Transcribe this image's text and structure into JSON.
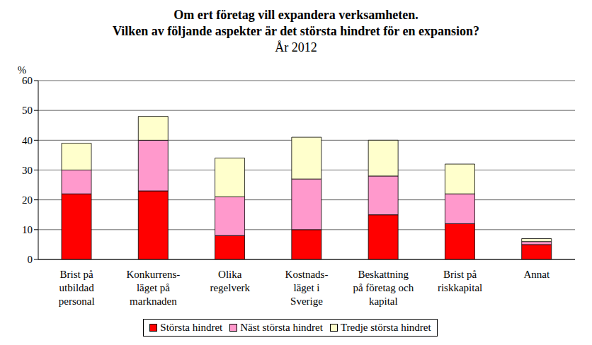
{
  "chart_data": {
    "type": "bar",
    "stacked": true,
    "title": "Om ert företag vill expandera verksamheten.\nVilken av följande aspekter är det största hindret för en expansion?",
    "subtitle": "År 2012",
    "y_label": "%",
    "categories": [
      "Brist på\nutbildad\npersonal",
      "Konkurrens-\nläget på\nmarknaden",
      "Olika\nregelverk",
      "Kostnads-\nläget  i\nSverige",
      "Beskattning\npå företag och\nkapital",
      "Brist på\nriskkapital",
      "Annat"
    ],
    "series": [
      {
        "name": "Största hindret",
        "color": "#ff0000",
        "values": [
          22,
          23,
          8,
          10,
          15,
          12,
          5
        ]
      },
      {
        "name": "Näst största hindret",
        "color": "#ff99cc",
        "values": [
          8,
          17,
          13,
          17,
          13,
          10,
          1
        ]
      },
      {
        "name": "Tredje största hindret",
        "color": "#ffffcc",
        "values": [
          9,
          8,
          13,
          14,
          12,
          10,
          1
        ]
      }
    ],
    "ylim": [
      0,
      60
    ],
    "yticks": [
      0,
      10,
      20,
      30,
      40,
      50,
      60
    ],
    "grid": true,
    "legend": "bottom"
  }
}
